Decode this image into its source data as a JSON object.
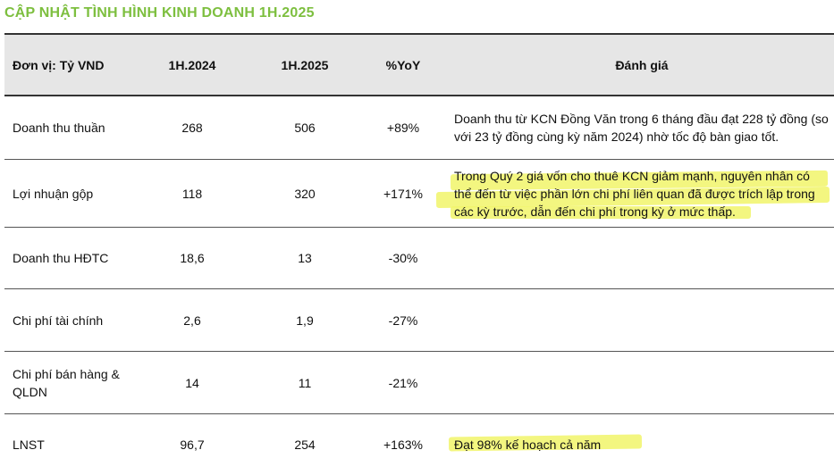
{
  "title": "CẬP NHẬT TÌNH HÌNH KINH DOANH 1H.2025",
  "header": {
    "unit": "Đơn vị: Tỷ VND",
    "col1": "1H.2024",
    "col2": "1H.2025",
    "col3": "%YoY",
    "col4": "Đánh giá"
  },
  "rows": [
    {
      "label": "Doanh thu thuần",
      "v2024": "268",
      "v2025": "506",
      "yoy": "+89%",
      "note": "Doanh thu từ KCN Đồng Văn trong 6 tháng đầu đạt 228 tỷ đồng (so với 23 tỷ đồng cùng kỳ năm 2024) nhờ tốc độ bàn giao tốt."
    },
    {
      "label": "Lợi nhuận gộp",
      "v2024": "118",
      "v2025": "320",
      "yoy": "+171%",
      "note": "Trong Quý 2 giá vốn cho thuê KCN giảm mạnh, nguyên nhân có thể đến từ việc phần lớn chi phí liên quan đã được trích lập trong các kỳ trước, dẫn đến chi phí trong kỳ ở mức thấp."
    },
    {
      "label": "Doanh thu HĐTC",
      "v2024": "18,6",
      "v2025": "13",
      "yoy": "-30%",
      "note": ""
    },
    {
      "label": "Chi phí tài chính",
      "v2024": "2,6",
      "v2025": "1,9",
      "yoy": "-27%",
      "note": ""
    },
    {
      "label": "Chi phí bán hàng & QLDN",
      "v2024": "14",
      "v2025": "11",
      "yoy": "-21%",
      "note": ""
    },
    {
      "label": "LNST",
      "v2024": "96,7",
      "v2025": "254",
      "yoy": "+163%",
      "note": "Đạt 98% kế hoạch cả năm"
    }
  ],
  "colors": {
    "title": "#7dbf3f",
    "header_bg": "#e6e6e6",
    "highlight": "#f1f56a"
  }
}
